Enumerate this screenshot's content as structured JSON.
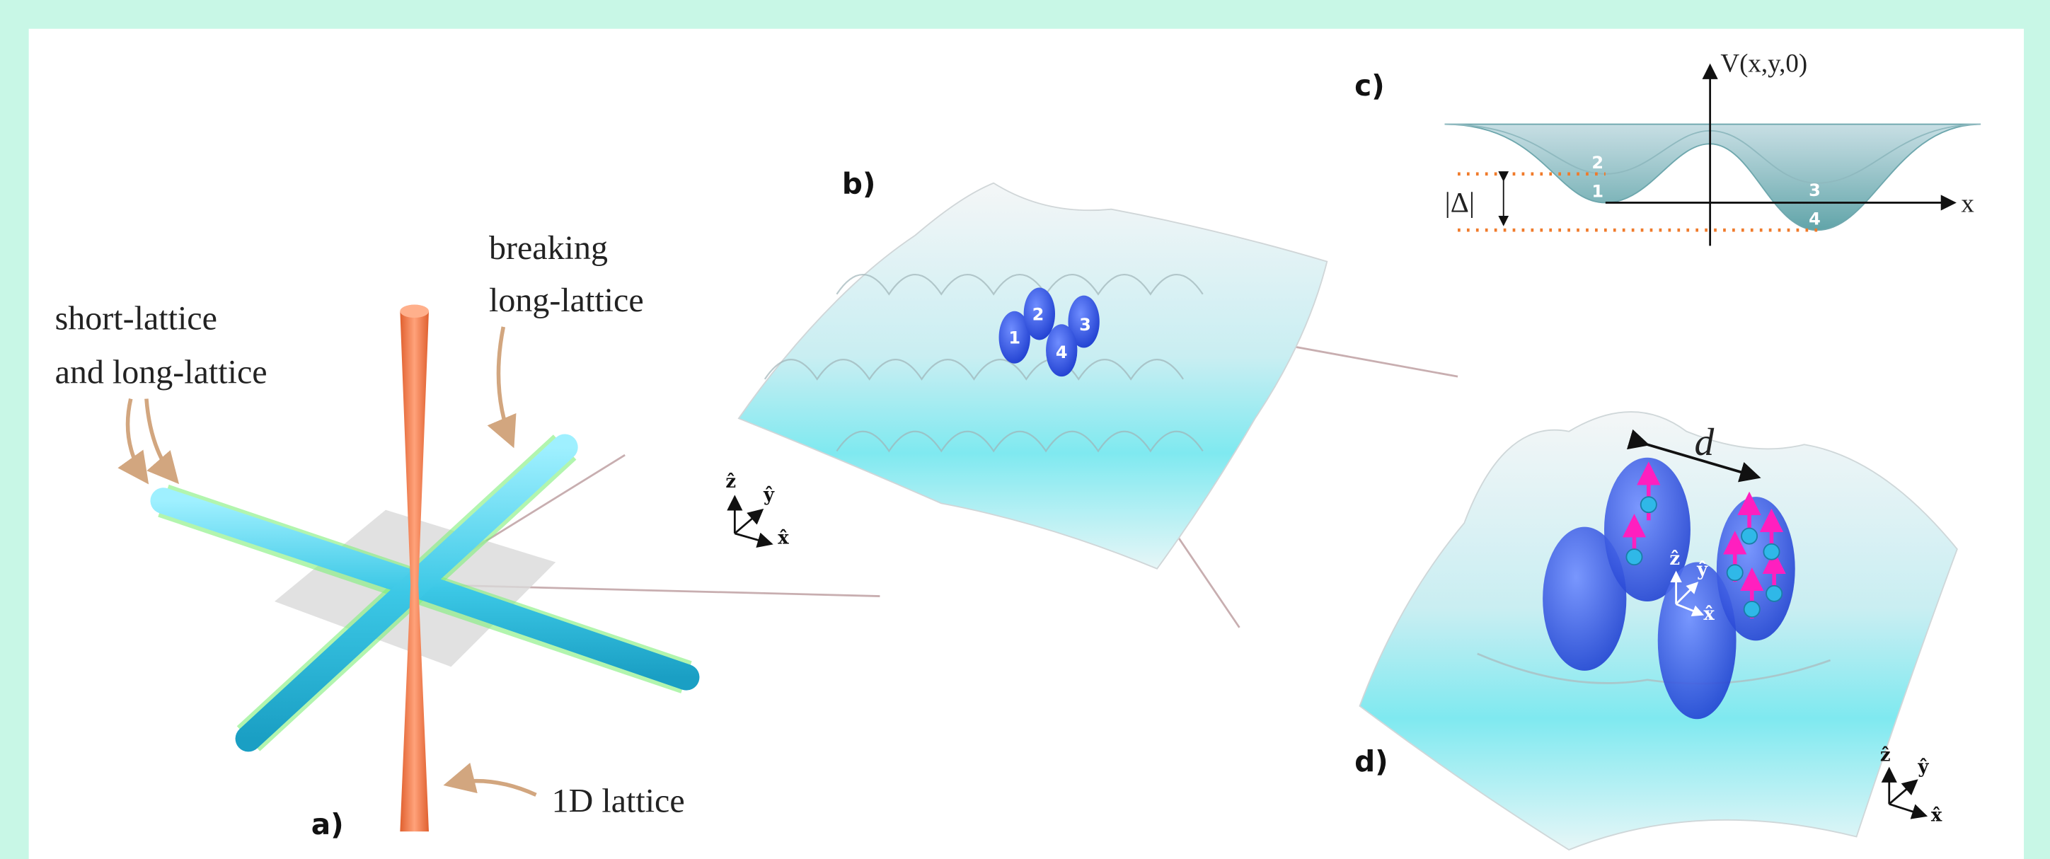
{
  "panel_a": {
    "label": "a)",
    "annotations": {
      "lattices_line1": "short-lattice",
      "lattices_line2": "and long-lattice",
      "breaking_line1": "breaking",
      "breaking_line2": "long-lattice",
      "vertical": "1D lattice"
    }
  },
  "panel_b": {
    "label": "b)",
    "sites": [
      "1",
      "2",
      "3",
      "4"
    ],
    "axes": [
      "ẑ",
      "ŷ",
      "x̂"
    ]
  },
  "panel_c": {
    "label": "c)",
    "y_axis": "V(x,y,0)",
    "x_axis": "x",
    "gap": "|Δ|",
    "sites": [
      "2",
      "1",
      "3",
      "4"
    ]
  },
  "panel_d": {
    "label": "d)",
    "distance": "d",
    "axes": [
      "ẑ",
      "ŷ",
      "x̂"
    ],
    "inner_axes": [
      "ẑ",
      "ŷ",
      "x̂"
    ]
  }
}
